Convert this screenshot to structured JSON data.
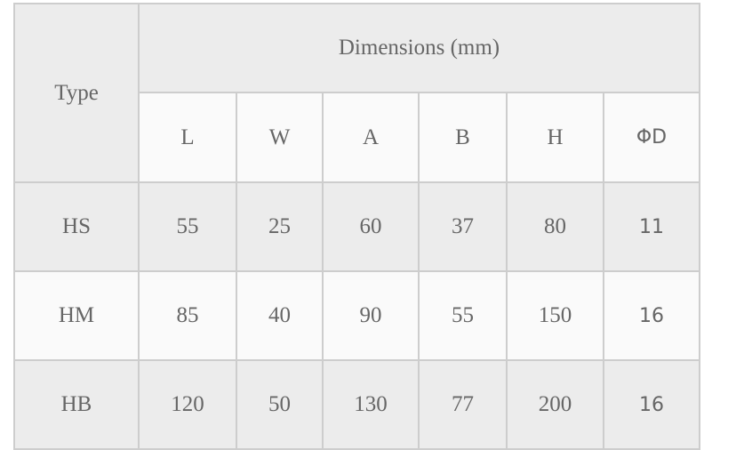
{
  "table": {
    "type_header": "Type",
    "group_header": "Dimensions (mm)",
    "columns": [
      "L",
      "W",
      "A",
      "B",
      "H",
      "ΦD"
    ],
    "rows": [
      {
        "type": "HS",
        "values": [
          "55",
          "25",
          "60",
          "37",
          "80",
          "11"
        ]
      },
      {
        "type": "HM",
        "values": [
          "85",
          "40",
          "90",
          "55",
          "150",
          "16"
        ]
      },
      {
        "type": "HB",
        "values": [
          "120",
          "50",
          "130",
          "77",
          "200",
          "16"
        ]
      }
    ]
  }
}
